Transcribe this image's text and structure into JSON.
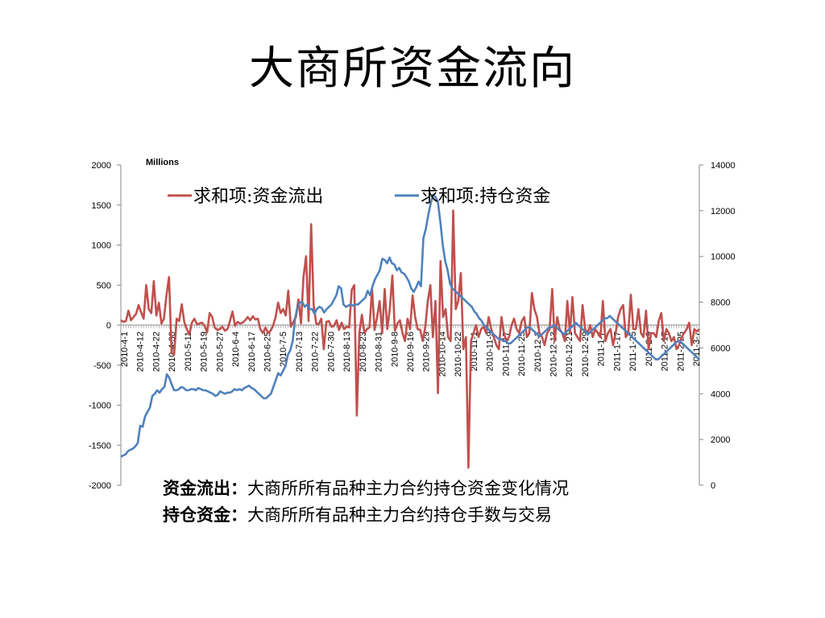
{
  "slide": {
    "title": "大商所资金流向"
  },
  "notes": [
    {
      "term": "资金流出",
      "sep": "：",
      "desc": "大商所所有品种主力合约持仓资金变化情况"
    },
    {
      "term": "持仓资金",
      "sep": "：",
      "desc": "大商所所有品种主力合约持仓手数与交易"
    }
  ],
  "chart_data": {
    "type": "line",
    "unit_label": "Millions",
    "left_axis": {
      "min": -2000,
      "max": 2000,
      "step": 500
    },
    "right_axis": {
      "min": 0,
      "max": 14000,
      "step": 2000
    },
    "x_tick_labels": [
      "2010-4-1",
      "2010-4-12",
      "2010-4-22",
      "2010-4-30",
      "2010-5-11",
      "2010-5-19",
      "2010-5-27",
      "2010-6-4",
      "2010-6-17",
      "2010-6-25",
      "2010-7-5",
      "2010-7-13",
      "2010-7-22",
      "2010-7-30",
      "2010-8-13",
      "2010-8-23",
      "2010-8-31",
      "2010-9-8",
      "2010-9-16",
      "2010-9-29",
      "2010-10-14",
      "2010-10-22",
      "2010-11-1",
      "2010-11-9",
      "2010-11-17",
      "2010-11-25",
      "2010-12-3",
      "2010-12-13",
      "2010-12-21",
      "2010-12-29",
      "2011-1-7",
      "2011-1-17",
      "2011-1-25",
      "2011-2-9",
      "2011-2-17",
      "2011-2-25",
      "2011-3-7"
    ],
    "legend_position": "top",
    "series": [
      {
        "name": "求和项:资金流出",
        "axis": "left",
        "color": "#C0504D",
        "values": [
          60,
          40,
          50,
          180,
          60,
          100,
          140,
          250,
          160,
          80,
          500,
          200,
          150,
          550,
          120,
          280,
          20,
          80,
          380,
          600,
          -350,
          -370,
          80,
          50,
          260,
          40,
          -50,
          -120,
          30,
          80,
          10,
          20,
          30,
          -10,
          -90,
          150,
          100,
          -30,
          -60,
          -50,
          -20,
          -70,
          -50,
          50,
          170,
          -10,
          40,
          20,
          30,
          60,
          100,
          60,
          110,
          70,
          80,
          -50,
          -100,
          -30,
          -100,
          -70,
          -10,
          100,
          280,
          150,
          200,
          120,
          430,
          -20,
          40,
          100,
          320,
          20,
          600,
          860,
          50,
          1260,
          250,
          20,
          10,
          80,
          -300,
          40,
          50,
          -20,
          -10,
          60,
          -60,
          30,
          -50,
          -20,
          -30,
          440,
          500,
          -1130,
          -100,
          130,
          -100,
          -50,
          -30,
          450,
          -60,
          100,
          300,
          -100,
          450,
          -50,
          200,
          620,
          -70,
          20,
          60,
          -100,
          -200,
          80,
          -50,
          370,
          100,
          -50,
          -60,
          -200,
          -20,
          300,
          500,
          -150,
          300,
          -850,
          800,
          100,
          200,
          -150,
          -200,
          1430,
          200,
          300,
          650,
          -300,
          -150,
          -1780,
          -200,
          -100,
          0,
          -150,
          -50,
          -20,
          -100,
          100,
          -50,
          -150,
          -250,
          -300,
          100,
          -100,
          -200,
          -150,
          0,
          80,
          -50,
          -100,
          50,
          100,
          -150,
          -100,
          400,
          200,
          100,
          -100,
          -150,
          -250,
          -100,
          -50,
          450,
          -200,
          100,
          -50,
          -100,
          -200,
          300,
          -100,
          350,
          -100,
          -150,
          -200,
          250,
          -50,
          -100,
          0,
          -150,
          -50,
          -100,
          -150,
          300,
          -200,
          -100,
          -50,
          -250,
          -100,
          100,
          200,
          250,
          -150,
          -100,
          380,
          -50,
          -50,
          200,
          -100,
          -150,
          180,
          -300,
          -100,
          -100,
          -150,
          50,
          150,
          -200,
          -50,
          -100,
          -200,
          -150,
          -300,
          -250,
          -150,
          -100,
          -50,
          30,
          -250,
          -50,
          -80,
          -50
        ]
      },
      {
        "name": "求和项:持仓资金",
        "axis": "right",
        "color": "#4F81BD",
        "values": [
          1250,
          1300,
          1350,
          1500,
          1550,
          1600,
          1700,
          1850,
          2600,
          2550,
          3000,
          3200,
          3400,
          3900,
          4000,
          4150,
          4050,
          4200,
          4300,
          4850,
          4700,
          4400,
          4150,
          4150,
          4200,
          4300,
          4250,
          4150,
          4150,
          4200,
          4200,
          4150,
          4250,
          4200,
          4150,
          4150,
          4100,
          4050,
          4000,
          3900,
          3950,
          4100,
          4050,
          4000,
          4050,
          4050,
          4100,
          4200,
          4150,
          4200,
          4150,
          4250,
          4300,
          4350,
          4250,
          4200,
          4100,
          4000,
          3900,
          3800,
          3800,
          3900,
          4000,
          4300,
          4600,
          4900,
          4800,
          5000,
          5200,
          5700,
          5900,
          6300,
          7300,
          7800,
          8000,
          8000,
          7800,
          7900,
          7700,
          7700,
          7500,
          7700,
          7800,
          7750,
          7550,
          7700,
          7800,
          7900,
          8100,
          8300,
          8700,
          8600,
          7900,
          7800,
          7850,
          7900,
          7850,
          7900,
          7900,
          8000,
          8100,
          8200,
          8500,
          8300,
          8700,
          9000,
          9200,
          9400,
          9900,
          9850,
          9700,
          9950,
          9700,
          9650,
          9400,
          9500,
          9300,
          9250,
          9100,
          8900,
          8600,
          8450,
          8650,
          8900,
          8700,
          10800,
          11200,
          11800,
          12300,
          12700,
          12600,
          12400,
          11500,
          10500,
          9800,
          9400,
          8800,
          8600,
          8500,
          8400,
          8300,
          8200,
          8100,
          8000,
          7900,
          7800,
          7600,
          7500,
          7300,
          7200,
          7000,
          6900,
          6800,
          6700,
          6600,
          6500,
          6400,
          6400,
          6300,
          6300,
          6200,
          6200,
          6300,
          6400,
          6500,
          6600,
          6700,
          6800,
          6900,
          6900,
          6800,
          6700,
          6600,
          6500,
          6600,
          6700,
          6800,
          6900,
          6900,
          7000,
          6900,
          6800,
          6700,
          6600,
          6700,
          6800,
          6900,
          7000,
          7100,
          7000,
          6900,
          6800,
          6700,
          6600,
          6700,
          6800,
          6900,
          7000,
          7100,
          7200,
          7300,
          7300,
          7400,
          7300,
          7200,
          7100,
          7000,
          6900,
          6800,
          6700,
          6600,
          6500,
          6400,
          6300,
          6200,
          6100,
          6000,
          5900,
          5800,
          5700,
          5600,
          5500,
          5500,
          5600,
          5700,
          5800,
          5900,
          6000,
          6100,
          6200,
          6300,
          6300,
          6200,
          6100,
          6000,
          5900,
          5800,
          5700,
          5600,
          5500
        ]
      }
    ]
  }
}
